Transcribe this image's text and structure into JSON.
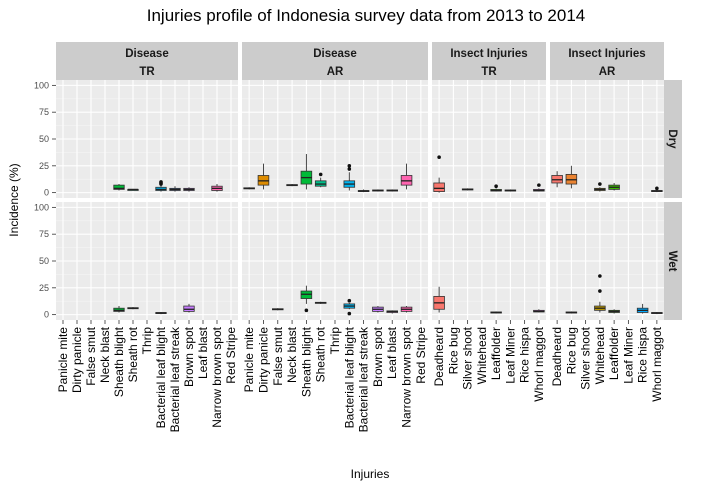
{
  "chart_data": {
    "type": "box",
    "title": "Injuries profile of Indonesia survey data from 2013 to 2014",
    "xlabel": "Injuries",
    "ylabel": "Incidence (%)",
    "ylim": [
      0,
      100
    ],
    "yticks": [
      0,
      25,
      50,
      75,
      100
    ],
    "grid": true,
    "legend": "none",
    "row_facets": [
      "Dry",
      "Wet"
    ],
    "col_facets": [
      {
        "group": "Disease",
        "system": "TR",
        "categories": [
          "Panicle mite",
          "Dirty panicle",
          "False smut",
          "Neck blast",
          "Sheath blight",
          "Sheath rot",
          "Thrip",
          "Bacterial leaf blight",
          "Bacterial leaf streak",
          "Brown spot",
          "Leaf blast",
          "Narrow brown spot",
          "Red Stripe"
        ]
      },
      {
        "group": "Disease",
        "system": "AR",
        "categories": [
          "Panicle mite",
          "Dirty panicle",
          "False smut",
          "Neck blast",
          "Sheath blight",
          "Sheath rot",
          "Thrip",
          "Bacterial leaf blight",
          "Bacterial leaf streak",
          "Brown spot",
          "Leaf blast",
          "Narrow brown spot",
          "Red Stripe"
        ]
      },
      {
        "group": "Insect Injuries",
        "system": "TR",
        "categories": [
          "Deadheard",
          "Rice bug",
          "Silver shoot",
          "Whitehead",
          "Leaffolder",
          "Leaf Miner",
          "Rice hispa",
          "Whorl maggot"
        ]
      },
      {
        "group": "Insect Injuries",
        "system": "AR",
        "categories": [
          "Deadheard",
          "Rice bug",
          "Silver shoot",
          "Whitehead",
          "Leaffolder",
          "Leaf Miner",
          "Rice hispa",
          "Whorl maggot"
        ]
      }
    ],
    "colors": {
      "Panicle mite": "#f8766d",
      "Dirty panicle": "#de8c00",
      "False smut": "#b79f00",
      "Neck blast": "#7cae00",
      "Sheath blight": "#00ba38",
      "Sheath rot": "#00c08b",
      "Thrip": "#00bfc4",
      "Bacterial leaf blight": "#00b4f0",
      "Bacterial leaf streak": "#619cff",
      "Brown spot": "#c77cff",
      "Leaf blast": "#f564e3",
      "Narrow brown spot": "#ff64b0",
      "Red Stripe": "#ff6c91",
      "Deadheard": "#f8766d",
      "Rice bug": "#ea8331",
      "Silver shoot": "#a3a500",
      "Whitehead": "#c09b00",
      "Leaffolder": "#39b600",
      "Leaf Miner": "#00bf7d",
      "Rice hispa": "#00a9ff",
      "Whorl maggot": "#e76bf3"
    },
    "boxes": [
      {
        "row": "Dry",
        "facet": 0,
        "category": "Sheath blight",
        "min": 2,
        "q1": 3,
        "median": 4,
        "q3": 7,
        "max": 8,
        "outliers": []
      },
      {
        "row": "Dry",
        "facet": 0,
        "category": "Sheath rot",
        "min": 2,
        "q1": 2,
        "median": 3,
        "q3": 3,
        "max": 3,
        "outliers": []
      },
      {
        "row": "Dry",
        "facet": 0,
        "category": "Bacterial leaf blight",
        "min": 1,
        "q1": 2,
        "median": 3,
        "q3": 5,
        "max": 7,
        "outliers": [
          8,
          9,
          10
        ]
      },
      {
        "row": "Dry",
        "facet": 0,
        "category": "Bacterial leaf streak",
        "min": 1,
        "q1": 2,
        "median": 3,
        "q3": 4,
        "max": 6,
        "outliers": []
      },
      {
        "row": "Dry",
        "facet": 0,
        "category": "Brown spot",
        "min": 1,
        "q1": 2,
        "median": 3,
        "q3": 4,
        "max": 5,
        "outliers": []
      },
      {
        "row": "Dry",
        "facet": 0,
        "category": "Narrow brown spot",
        "min": 1,
        "q1": 2,
        "median": 4,
        "q3": 6,
        "max": 8,
        "outliers": []
      },
      {
        "row": "Dry",
        "facet": 1,
        "category": "Panicle mite",
        "min": 3,
        "q1": 3.5,
        "median": 4,
        "q3": 4.5,
        "max": 5,
        "outliers": []
      },
      {
        "row": "Dry",
        "facet": 1,
        "category": "Dirty panicle",
        "min": 3,
        "q1": 7,
        "median": 11,
        "q3": 16,
        "max": 27,
        "outliers": []
      },
      {
        "row": "Dry",
        "facet": 1,
        "category": "Neck blast",
        "min": 6,
        "q1": 6.5,
        "median": 7,
        "q3": 7.5,
        "max": 8,
        "outliers": []
      },
      {
        "row": "Dry",
        "facet": 1,
        "category": "Sheath blight",
        "min": 3,
        "q1": 8,
        "median": 14,
        "q3": 20,
        "max": 36,
        "outliers": []
      },
      {
        "row": "Dry",
        "facet": 1,
        "category": "Sheath rot",
        "min": 5,
        "q1": 6,
        "median": 8,
        "q3": 11,
        "max": 14,
        "outliers": [
          17
        ]
      },
      {
        "row": "Dry",
        "facet": 1,
        "category": "Bacterial leaf blight",
        "min": 2,
        "q1": 5,
        "median": 8,
        "q3": 11,
        "max": 19,
        "outliers": [
          22,
          25
        ]
      },
      {
        "row": "Dry",
        "facet": 1,
        "category": "Bacterial leaf streak",
        "min": 0.5,
        "q1": 1,
        "median": 1.5,
        "q3": 2,
        "max": 3,
        "outliers": []
      },
      {
        "row": "Dry",
        "facet": 1,
        "category": "Brown spot",
        "min": 1,
        "q1": 1.5,
        "median": 2,
        "q3": 2.5,
        "max": 3,
        "outliers": []
      },
      {
        "row": "Dry",
        "facet": 1,
        "category": "Leaf blast",
        "min": 1,
        "q1": 1.5,
        "median": 2,
        "q3": 2.5,
        "max": 3,
        "outliers": []
      },
      {
        "row": "Dry",
        "facet": 1,
        "category": "Narrow brown spot",
        "min": 3,
        "q1": 7,
        "median": 11,
        "q3": 16,
        "max": 27,
        "outliers": []
      },
      {
        "row": "Dry",
        "facet": 2,
        "category": "Deadheard",
        "min": 0,
        "q1": 1,
        "median": 4,
        "q3": 9,
        "max": 14,
        "outliers": [
          33
        ]
      },
      {
        "row": "Dry",
        "facet": 2,
        "category": "Silver shoot",
        "min": 2,
        "q1": 2.5,
        "median": 3,
        "q3": 3.5,
        "max": 4,
        "outliers": []
      },
      {
        "row": "Dry",
        "facet": 2,
        "category": "Leaffolder",
        "min": 1,
        "q1": 1.5,
        "median": 2,
        "q3": 3,
        "max": 4,
        "outliers": [
          6
        ]
      },
      {
        "row": "Dry",
        "facet": 2,
        "category": "Leaf Miner",
        "min": 1,
        "q1": 1.5,
        "median": 2,
        "q3": 2.5,
        "max": 3,
        "outliers": []
      },
      {
        "row": "Dry",
        "facet": 2,
        "category": "Whorl maggot",
        "min": 1,
        "q1": 1.5,
        "median": 2,
        "q3": 3,
        "max": 4,
        "outliers": [
          7
        ]
      },
      {
        "row": "Dry",
        "facet": 3,
        "category": "Deadheard",
        "min": 5,
        "q1": 9,
        "median": 12,
        "q3": 16,
        "max": 20,
        "outliers": []
      },
      {
        "row": "Dry",
        "facet": 3,
        "category": "Rice bug",
        "min": 4,
        "q1": 8,
        "median": 12,
        "q3": 17,
        "max": 25,
        "outliers": []
      },
      {
        "row": "Dry",
        "facet": 3,
        "category": "Whitehead",
        "min": 1,
        "q1": 2,
        "median": 3,
        "q3": 4,
        "max": 5,
        "outliers": [
          8
        ]
      },
      {
        "row": "Dry",
        "facet": 3,
        "category": "Leaffolder",
        "min": 2,
        "q1": 3,
        "median": 5,
        "q3": 7,
        "max": 9,
        "outliers": []
      },
      {
        "row": "Dry",
        "facet": 3,
        "category": "Whorl maggot",
        "min": 0.5,
        "q1": 1,
        "median": 1.5,
        "q3": 2,
        "max": 2.5,
        "outliers": [
          4
        ]
      },
      {
        "row": "Wet",
        "facet": 0,
        "category": "Sheath blight",
        "min": 2,
        "q1": 3,
        "median": 4,
        "q3": 6,
        "max": 8,
        "outliers": []
      },
      {
        "row": "Wet",
        "facet": 0,
        "category": "Sheath rot",
        "min": 5,
        "q1": 5.5,
        "median": 6,
        "q3": 6.5,
        "max": 7,
        "outliers": []
      },
      {
        "row": "Wet",
        "facet": 0,
        "category": "Bacterial leaf blight",
        "min": 0.5,
        "q1": 1,
        "median": 1.5,
        "q3": 2,
        "max": 2.5,
        "outliers": []
      },
      {
        "row": "Wet",
        "facet": 0,
        "category": "Brown spot",
        "min": 2,
        "q1": 3,
        "median": 5,
        "q3": 8,
        "max": 10,
        "outliers": []
      },
      {
        "row": "Wet",
        "facet": 1,
        "category": "False smut",
        "min": 4,
        "q1": 4.5,
        "median": 5,
        "q3": 5.5,
        "max": 6,
        "outliers": []
      },
      {
        "row": "Wet",
        "facet": 1,
        "category": "Sheath blight",
        "min": 10,
        "q1": 15,
        "median": 19,
        "q3": 22,
        "max": 27,
        "outliers": [
          4
        ]
      },
      {
        "row": "Wet",
        "facet": 1,
        "category": "Sheath rot",
        "min": 10,
        "q1": 10.5,
        "median": 11,
        "q3": 11.5,
        "max": 12,
        "outliers": []
      },
      {
        "row": "Wet",
        "facet": 1,
        "category": "Bacterial leaf blight",
        "min": 5,
        "q1": 6,
        "median": 8,
        "q3": 10,
        "max": 11,
        "outliers": [
          1,
          13
        ]
      },
      {
        "row": "Wet",
        "facet": 1,
        "category": "Brown spot",
        "min": 2,
        "q1": 3,
        "median": 5,
        "q3": 7,
        "max": 8,
        "outliers": []
      },
      {
        "row": "Wet",
        "facet": 1,
        "category": "Leaf blast",
        "min": 1,
        "q1": 2,
        "median": 3,
        "q3": 3.5,
        "max": 4,
        "outliers": []
      },
      {
        "row": "Wet",
        "facet": 1,
        "category": "Narrow brown spot",
        "min": 2,
        "q1": 3,
        "median": 5,
        "q3": 7,
        "max": 8,
        "outliers": []
      },
      {
        "row": "Wet",
        "facet": 2,
        "category": "Deadheard",
        "min": 2,
        "q1": 5,
        "median": 11,
        "q3": 17,
        "max": 26,
        "outliers": []
      },
      {
        "row": "Wet",
        "facet": 2,
        "category": "Leaffolder",
        "min": 1,
        "q1": 1.5,
        "median": 2,
        "q3": 2.5,
        "max": 3,
        "outliers": []
      },
      {
        "row": "Wet",
        "facet": 2,
        "category": "Whorl maggot",
        "min": 2,
        "q1": 2.5,
        "median": 3,
        "q3": 4,
        "max": 5,
        "outliers": []
      },
      {
        "row": "Wet",
        "facet": 3,
        "category": "Rice bug",
        "min": 1,
        "q1": 1.5,
        "median": 2,
        "q3": 2.5,
        "max": 3,
        "outliers": []
      },
      {
        "row": "Wet",
        "facet": 3,
        "category": "Whitehead",
        "min": 2,
        "q1": 4,
        "median": 6,
        "q3": 8,
        "max": 12,
        "outliers": [
          22,
          36
        ]
      },
      {
        "row": "Wet",
        "facet": 3,
        "category": "Leaffolder",
        "min": 1,
        "q1": 2,
        "median": 3,
        "q3": 4,
        "max": 5,
        "outliers": []
      },
      {
        "row": "Wet",
        "facet": 3,
        "category": "Rice hispa",
        "min": 1,
        "q1": 2,
        "median": 4,
        "q3": 6,
        "max": 10,
        "outliers": []
      },
      {
        "row": "Wet",
        "facet": 3,
        "category": "Whorl maggot",
        "min": 0.5,
        "q1": 1,
        "median": 1.5,
        "q3": 2,
        "max": 2.5,
        "outliers": []
      }
    ]
  }
}
